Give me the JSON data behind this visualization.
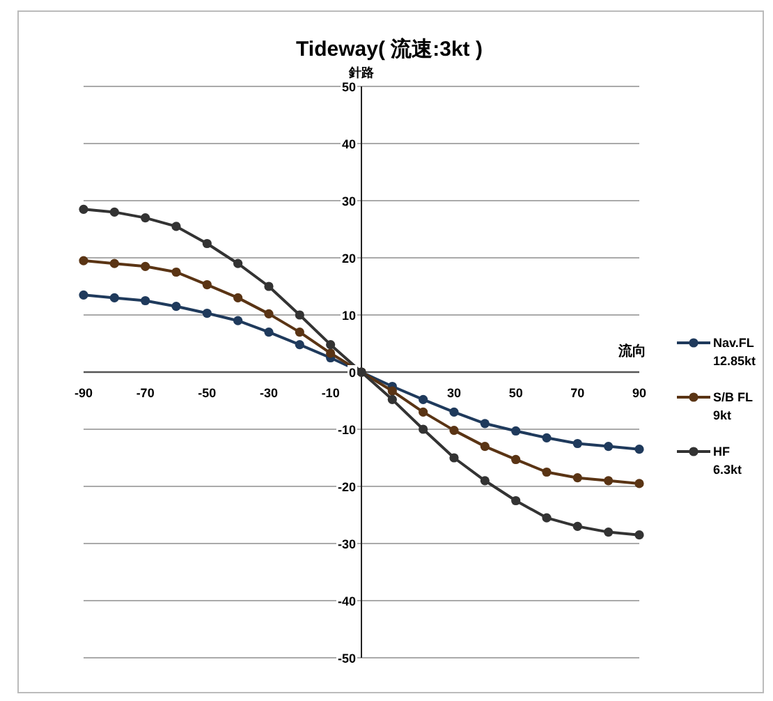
{
  "chart_data": {
    "type": "line",
    "title": "Tideway( 流速:3kt )",
    "ylabel": "針路",
    "xlabel": "流向",
    "x": [
      -90,
      -80,
      -70,
      -60,
      -50,
      -40,
      -30,
      -20,
      -10,
      0,
      10,
      20,
      30,
      40,
      50,
      60,
      70,
      80,
      90
    ],
    "xlim": [
      -90,
      90
    ],
    "xticks": [
      -90,
      -70,
      -50,
      -30,
      -10,
      30,
      50,
      70,
      90
    ],
    "ylim": [
      -50,
      50
    ],
    "yticks": [
      -50,
      -40,
      -30,
      -20,
      -10,
      0,
      10,
      20,
      30,
      40,
      50
    ],
    "grid": "y",
    "legend": "right",
    "marker": "circle",
    "line_style": "solid",
    "series": [
      {
        "name": "Nav.FL 12.85kt",
        "color": "#1f3a5c",
        "values": [
          13.5,
          13,
          12.5,
          11.5,
          10.3,
          9,
          7,
          4.8,
          2.5,
          0,
          -2.5,
          -4.8,
          -7,
          -9,
          -10.3,
          -11.5,
          -12.5,
          -13,
          -13.5
        ]
      },
      {
        "name": "S/B FL 9kt",
        "color": "#5a3414",
        "values": [
          19.5,
          19,
          18.5,
          17.5,
          15.3,
          13,
          10.2,
          7,
          3.3,
          0,
          -3.3,
          -7,
          -10.2,
          -13,
          -15.3,
          -17.5,
          -18.5,
          -19,
          -19.5
        ]
      },
      {
        "name": "HF 6.3kt",
        "color": "#333333",
        "values": [
          28.5,
          28,
          27,
          25.5,
          22.5,
          19,
          15,
          10,
          4.8,
          0,
          -4.8,
          -10,
          -15,
          -19,
          -22.5,
          -25.5,
          -27,
          -28,
          -28.5
        ]
      }
    ]
  }
}
